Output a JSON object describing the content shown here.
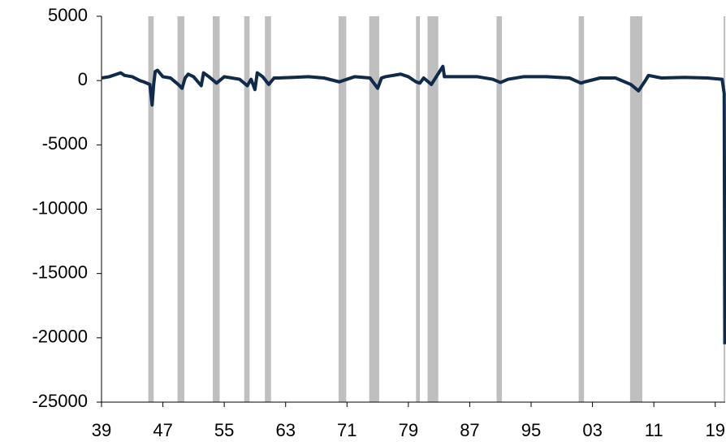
{
  "chart_data": {
    "type": "line",
    "x": [
      1939,
      1940,
      1941,
      1941.5,
      1942,
      1943,
      1944,
      1944.5,
      1945.3,
      1945.6,
      1945.8,
      1946,
      1946.3,
      1947,
      1948,
      1949,
      1949.5,
      1949.9,
      1950.3,
      1951,
      1952,
      1952.3,
      1953,
      1954,
      1955,
      1956,
      1957,
      1958,
      1958.5,
      1959,
      1959.3,
      1960,
      1960.8,
      1961.5,
      1962,
      1964,
      1966,
      1968,
      1970,
      1971,
      1972,
      1974,
      1975,
      1975.5,
      1976,
      1978,
      1979,
      1980,
      1980.5,
      1981,
      1982,
      1983.5,
      1983.7,
      1985,
      1988,
      1990,
      1991,
      1992,
      1994,
      1997,
      2000,
      2001.5,
      2002,
      2004,
      2006,
      2008,
      2009,
      2010,
      2010.3,
      2012,
      2015,
      2018,
      2019.9,
      2020.17,
      2020.25
    ],
    "series": [
      {
        "color": "#0f2a4a",
        "values": [
          200,
          300,
          500,
          600,
          400,
          300,
          0,
          -100,
          -300,
          -1900,
          -300,
          700,
          800,
          300,
          200,
          -300,
          -600,
          200,
          500,
          300,
          -400,
          600,
          300,
          -200,
          300,
          200,
          100,
          -400,
          100,
          -700,
          600,
          300,
          -300,
          200,
          200,
          250,
          300,
          200,
          -100,
          100,
          300,
          200,
          -600,
          200,
          300,
          500,
          300,
          -100,
          -200,
          200,
          -300,
          1100,
          300,
          300,
          300,
          100,
          -150,
          100,
          300,
          300,
          200,
          -200,
          -100,
          200,
          200,
          -300,
          -800,
          100,
          400,
          200,
          250,
          200,
          100,
          -1000,
          -20500
        ]
      }
    ],
    "recessions": [
      [
        1945.1,
        1945.8
      ],
      [
        1948.9,
        1949.8
      ],
      [
        1953.5,
        1954.4
      ],
      [
        1957.6,
        1958.3
      ],
      [
        1960.3,
        1961.1
      ],
      [
        1969.9,
        1970.9
      ],
      [
        1973.9,
        1975.2
      ],
      [
        1980.0,
        1980.5
      ],
      [
        1981.5,
        1982.9
      ],
      [
        1990.5,
        1991.2
      ],
      [
        2001.2,
        2001.9
      ],
      [
        2007.9,
        2009.5
      ],
      [
        2020.1,
        2020.3
      ]
    ],
    "recession_color": "#bfbfbf",
    "xlim": [
      1939,
      2020.3
    ],
    "xticks": [
      {
        "value": 1939,
        "label": "39"
      },
      {
        "value": 1947,
        "label": "47"
      },
      {
        "value": 1955,
        "label": "55"
      },
      {
        "value": 1963,
        "label": "63"
      },
      {
        "value": 1971,
        "label": "71"
      },
      {
        "value": 1979,
        "label": "79"
      },
      {
        "value": 1987,
        "label": "87"
      },
      {
        "value": 1995,
        "label": "95"
      },
      {
        "value": 2003,
        "label": "03"
      },
      {
        "value": 2011,
        "label": "11"
      },
      {
        "value": 2019,
        "label": "19"
      }
    ],
    "ylim": [
      -25000,
      5000
    ],
    "yticks": [
      -25000,
      -20000,
      -15000,
      -10000,
      -5000,
      0,
      5000
    ]
  }
}
